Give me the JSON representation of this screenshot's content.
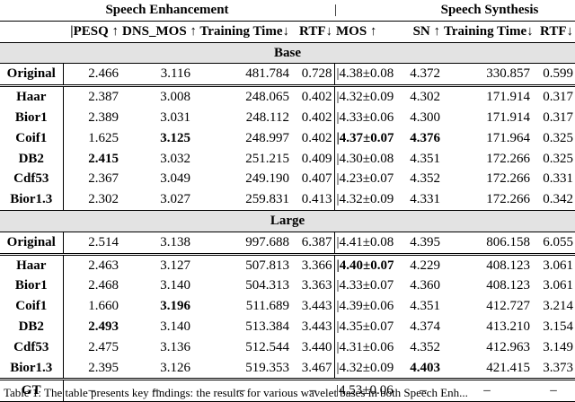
{
  "groups": {
    "left": "Speech Enhancement",
    "sep": "|",
    "right": "Speech Synthesis"
  },
  "columns": [
    "",
    "|PESQ ↑",
    "DNS_MOS ↑",
    "Training Time↓",
    "RTF↓",
    "MOS ↑",
    "SN ↑",
    "Training Time↓",
    "RTF↓"
  ],
  "sections": [
    {
      "title": "Base",
      "original": [
        "Original",
        "2.466",
        "3.116",
        "481.784",
        "0.728",
        "4.38±0.08",
        "4.372",
        "330.857",
        "0.599"
      ],
      "rows": [
        [
          "Haar",
          "2.387",
          "3.008",
          "248.065",
          "0.402",
          "4.32±0.09",
          "4.302",
          "171.914",
          "0.317"
        ],
        [
          "Bior1",
          "2.389",
          "3.031",
          "248.112",
          "0.402",
          "4.33±0.06",
          "4.300",
          "171.914",
          "0.317"
        ],
        [
          "Coif1",
          "1.625",
          "3.125",
          "248.997",
          "0.402",
          "4.37±0.07",
          "4.376",
          "171.964",
          "0.325"
        ],
        [
          "DB2",
          "2.415",
          "3.032",
          "251.215",
          "0.409",
          "4.30±0.08",
          "4.351",
          "172.266",
          "0.325"
        ],
        [
          "Cdf53",
          "2.367",
          "3.049",
          "249.190",
          "0.407",
          "4.23±0.07",
          "4.352",
          "172.266",
          "0.331"
        ],
        [
          "Bior1.3",
          "2.302",
          "3.027",
          "259.831",
          "0.413",
          "4.32±0.09",
          "4.331",
          "172.266",
          "0.342"
        ]
      ],
      "bold": [
        [
          2,
          2
        ],
        [
          2,
          5
        ],
        [
          2,
          6
        ],
        [
          3,
          1
        ]
      ]
    },
    {
      "title": "Large",
      "original": [
        "Original",
        "2.514",
        "3.138",
        "997.688",
        "6.387",
        "4.41±0.08",
        "4.395",
        "806.158",
        "6.055"
      ],
      "rows": [
        [
          "Haar",
          "2.463",
          "3.127",
          "507.813",
          "3.366",
          "4.40±0.07",
          "4.229",
          "408.123",
          "3.061"
        ],
        [
          "Bior1",
          "2.468",
          "3.140",
          "504.313",
          "3.363",
          "4.33±0.07",
          "4.360",
          "408.123",
          "3.061"
        ],
        [
          "Coif1",
          "1.660",
          "3.196",
          "511.689",
          "3.443",
          "4.39±0.06",
          "4.351",
          "412.727",
          "3.214"
        ],
        [
          "DB2",
          "2.493",
          "3.140",
          "513.384",
          "3.443",
          "4.35±0.07",
          "4.374",
          "413.210",
          "3.154"
        ],
        [
          "Cdf53",
          "2.475",
          "3.136",
          "512.544",
          "3.440",
          "4.31±0.06",
          "4.352",
          "412.963",
          "3.149"
        ],
        [
          "Bior1.3",
          "2.395",
          "3.126",
          "519.353",
          "3.467",
          "4.32±0.09",
          "4.403",
          "421.415",
          "3.373"
        ]
      ],
      "bold": [
        [
          0,
          5
        ],
        [
          2,
          2
        ],
        [
          3,
          1
        ],
        [
          5,
          6
        ]
      ]
    }
  ],
  "gt": [
    "GT",
    "–",
    "–",
    "–",
    "–",
    "4.53±0.06",
    "–",
    "–",
    "–"
  ],
  "caption": "Table 1: The table presents key findings: the results for various wavelet bases in both Speech Enh..."
}
